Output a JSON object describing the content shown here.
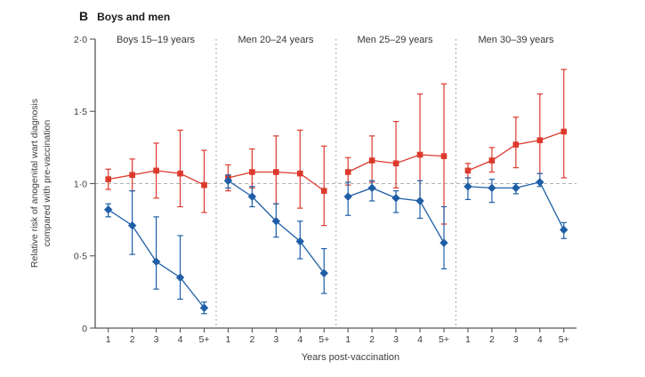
{
  "figure": {
    "panel_letter": "B",
    "title": "Boys and men"
  },
  "chart_data": {
    "type": "line",
    "title": "B Boys and men",
    "xlabel": "Years post-vaccination",
    "ylabel": "Relative risk of anogenital wart diagnosis compared with pre-vaccination",
    "ylabel_line1": "Relative risk of anogenital wart diagnosis",
    "ylabel_line2": "compared with pre-vaccination",
    "ylim": [
      0,
      2.0
    ],
    "y_ticks": [
      {
        "v": 2.0,
        "label": "2·0"
      },
      {
        "v": 1.5,
        "label": "1·5"
      },
      {
        "v": 1.0,
        "label": "1·0"
      },
      {
        "v": 0.5,
        "label": "0·5"
      },
      {
        "v": 0.0,
        "label": "0"
      }
    ],
    "reference_line": 1.0,
    "grid": false,
    "legend": "none visible (error bars show confidence intervals)",
    "categories": [
      "1",
      "2",
      "3",
      "4",
      "5+"
    ],
    "series_meta": [
      {
        "name": "red-squares",
        "marker": "square",
        "color": "#dc392c"
      },
      {
        "name": "blue-diamonds",
        "marker": "diamond",
        "color": "#1e5ea6"
      }
    ],
    "panels": [
      {
        "label": "Boys 15–19 years",
        "red": [
          {
            "v": 1.03,
            "lo": 0.96,
            "hi": 1.1
          },
          {
            "v": 1.06,
            "lo": 0.95,
            "hi": 1.17
          },
          {
            "v": 1.09,
            "lo": 0.9,
            "hi": 1.28
          },
          {
            "v": 1.07,
            "lo": 0.84,
            "hi": 1.37
          },
          {
            "v": 0.99,
            "lo": 0.8,
            "hi": 1.23
          }
        ],
        "blue": [
          {
            "v": 0.82,
            "lo": 0.77,
            "hi": 0.86
          },
          {
            "v": 0.71,
            "lo": 0.51,
            "hi": 0.95
          },
          {
            "v": 0.46,
            "lo": 0.27,
            "hi": 0.77
          },
          {
            "v": 0.35,
            "lo": 0.2,
            "hi": 0.64
          },
          {
            "v": 0.14,
            "lo": 0.1,
            "hi": 0.18
          }
        ]
      },
      {
        "label": "Men 20–24 years",
        "red": [
          {
            "v": 1.04,
            "lo": 0.95,
            "hi": 1.13
          },
          {
            "v": 1.08,
            "lo": 0.97,
            "hi": 1.24
          },
          {
            "v": 1.08,
            "lo": 0.86,
            "hi": 1.33
          },
          {
            "v": 1.07,
            "lo": 0.83,
            "hi": 1.37
          },
          {
            "v": 0.95,
            "lo": 0.71,
            "hi": 1.26
          }
        ],
        "blue": [
          {
            "v": 1.02,
            "lo": 0.97,
            "hi": 1.06
          },
          {
            "v": 0.91,
            "lo": 0.84,
            "hi": 0.98
          },
          {
            "v": 0.74,
            "lo": 0.63,
            "hi": 0.86
          },
          {
            "v": 0.6,
            "lo": 0.48,
            "hi": 0.74
          },
          {
            "v": 0.38,
            "lo": 0.24,
            "hi": 0.55
          }
        ]
      },
      {
        "label": "Men 25–29 years",
        "red": [
          {
            "v": 1.08,
            "lo": 0.99,
            "hi": 1.18
          },
          {
            "v": 1.16,
            "lo": 1.01,
            "hi": 1.33
          },
          {
            "v": 1.14,
            "lo": 0.97,
            "hi": 1.43
          },
          {
            "v": 1.2,
            "lo": 0.89,
            "hi": 1.62
          },
          {
            "v": 1.19,
            "lo": 0.72,
            "hi": 1.69
          }
        ],
        "blue": [
          {
            "v": 0.91,
            "lo": 0.78,
            "hi": 1.01
          },
          {
            "v": 0.97,
            "lo": 0.88,
            "hi": 1.02
          },
          {
            "v": 0.9,
            "lo": 0.8,
            "hi": 0.95
          },
          {
            "v": 0.88,
            "lo": 0.76,
            "hi": 1.02
          },
          {
            "v": 0.59,
            "lo": 0.41,
            "hi": 0.84
          }
        ]
      },
      {
        "label": "Men 30–39 years",
        "red": [
          {
            "v": 1.09,
            "lo": 1.04,
            "hi": 1.14
          },
          {
            "v": 1.16,
            "lo": 1.08,
            "hi": 1.25
          },
          {
            "v": 1.27,
            "lo": 1.11,
            "hi": 1.46
          },
          {
            "v": 1.3,
            "lo": 1.07,
            "hi": 1.62
          },
          {
            "v": 1.36,
            "lo": 1.04,
            "hi": 1.79
          }
        ],
        "blue": [
          {
            "v": 0.98,
            "lo": 0.89,
            "hi": 1.04
          },
          {
            "v": 0.97,
            "lo": 0.87,
            "hi": 1.03
          },
          {
            "v": 0.97,
            "lo": 0.93,
            "hi": 1.0
          },
          {
            "v": 1.01,
            "lo": 0.98,
            "hi": 1.07
          },
          {
            "v": 0.68,
            "lo": 0.62,
            "hi": 0.73
          }
        ]
      }
    ],
    "colors": {
      "red_series": "#dc392c",
      "blue_series": "#1e5ea6",
      "axis": "#58585a",
      "reference_dash": "#b0b0b0",
      "separator_dots": "#9a9a9a",
      "tick_text": "#3d3d3d"
    }
  }
}
